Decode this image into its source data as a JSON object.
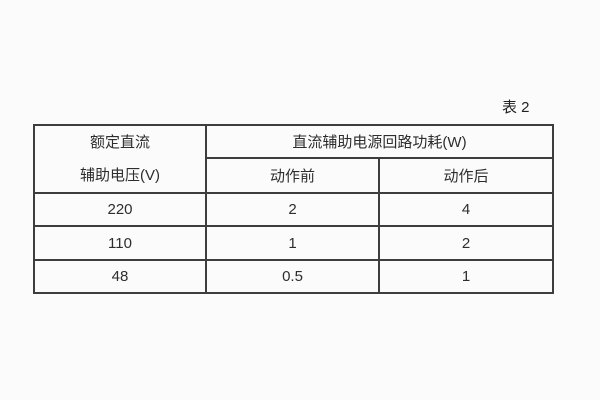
{
  "caption": "表 2",
  "table": {
    "header": {
      "col1_line1": "额定直流",
      "col1_line2": "辅助电压(V)",
      "group_header": "直流辅助电源回路功耗(W)",
      "sub_header_before": "动作前",
      "sub_header_after": "动作后"
    },
    "rows": [
      [
        "220",
        "2",
        "4"
      ],
      [
        "110",
        "1",
        "2"
      ],
      [
        "48",
        "0.5",
        "1"
      ]
    ]
  },
  "colors": {
    "border": "#3d3d3d",
    "text": "#2d2d2d",
    "background": "#fbfbfb"
  },
  "chart_data": {
    "type": "table",
    "title": "表 2",
    "columns": [
      "额定直流辅助电压(V)",
      "直流辅助电源回路功耗(W) 动作前",
      "直流辅助电源回路功耗(W) 动作后"
    ],
    "rows": [
      [
        220,
        2,
        4
      ],
      [
        110,
        1,
        2
      ],
      [
        48,
        0.5,
        1
      ]
    ]
  }
}
